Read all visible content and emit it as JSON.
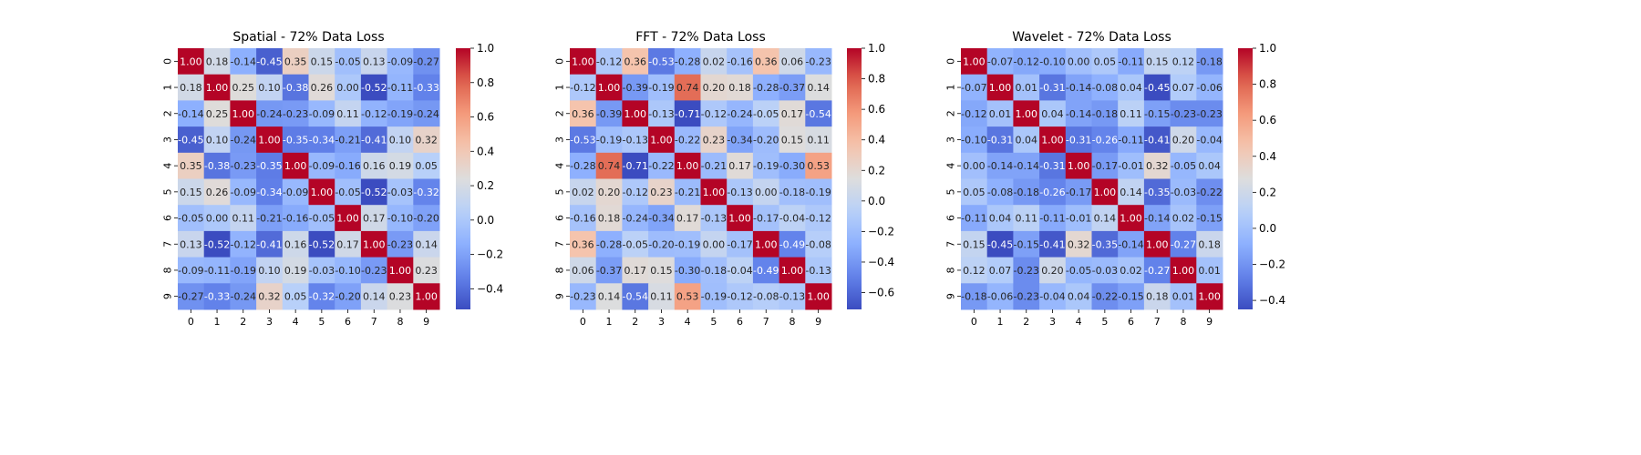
{
  "chart_data": [
    {
      "type": "heatmap",
      "title": "Spatial - 72% Data Loss",
      "x_tick_labels": [
        "0",
        "1",
        "2",
        "3",
        "4",
        "5",
        "6",
        "7",
        "8",
        "9"
      ],
      "y_tick_labels": [
        "0",
        "1",
        "2",
        "3",
        "4",
        "5",
        "6",
        "7",
        "8",
        "9"
      ],
      "colormap": "coolwarm",
      "value_range": [
        -0.52,
        1.0
      ],
      "colorbar_ticks": [
        "−0.4",
        "−0.2",
        "0.0",
        "0.2",
        "0.4",
        "0.6",
        "0.8",
        "1.0"
      ],
      "colorbar_tick_values": [
        -0.4,
        -0.2,
        0.0,
        0.2,
        0.4,
        0.6,
        0.8,
        1.0
      ],
      "matrix": [
        [
          1.0,
          0.18,
          -0.14,
          -0.45,
          0.35,
          0.15,
          -0.05,
          0.13,
          -0.09,
          -0.27
        ],
        [
          0.18,
          1.0,
          0.25,
          0.1,
          -0.38,
          0.26,
          0.0,
          -0.52,
          -0.11,
          -0.33
        ],
        [
          -0.14,
          0.25,
          1.0,
          -0.24,
          -0.23,
          -0.09,
          0.11,
          -0.12,
          -0.19,
          -0.24
        ],
        [
          -0.45,
          0.1,
          -0.24,
          1.0,
          -0.35,
          -0.34,
          -0.21,
          -0.41,
          0.1,
          0.32
        ],
        [
          0.35,
          -0.38,
          -0.23,
          -0.35,
          1.0,
          -0.09,
          -0.16,
          0.16,
          0.19,
          0.05
        ],
        [
          0.15,
          0.26,
          -0.09,
          -0.34,
          -0.09,
          1.0,
          -0.05,
          -0.52,
          -0.03,
          -0.32
        ],
        [
          -0.05,
          0.0,
          0.11,
          -0.21,
          -0.16,
          -0.05,
          1.0,
          0.17,
          -0.1,
          -0.2
        ],
        [
          0.13,
          -0.52,
          -0.12,
          -0.41,
          0.16,
          -0.52,
          0.17,
          1.0,
          -0.23,
          0.14
        ],
        [
          -0.09,
          -0.11,
          -0.19,
          0.1,
          0.19,
          -0.03,
          -0.1,
          -0.23,
          1.0,
          0.23
        ],
        [
          -0.27,
          -0.33,
          -0.24,
          0.32,
          0.05,
          -0.32,
          -0.2,
          0.14,
          0.23,
          1.0
        ]
      ]
    },
    {
      "type": "heatmap",
      "title": "FFT - 72% Data Loss",
      "x_tick_labels": [
        "0",
        "1",
        "2",
        "3",
        "4",
        "5",
        "6",
        "7",
        "8",
        "9"
      ],
      "y_tick_labels": [
        "0",
        "1",
        "2",
        "3",
        "4",
        "5",
        "6",
        "7",
        "8",
        "9"
      ],
      "colormap": "coolwarm",
      "value_range": [
        -0.71,
        1.0
      ],
      "colorbar_ticks": [
        "−0.6",
        "−0.4",
        "−0.2",
        "0.0",
        "0.2",
        "0.4",
        "0.6",
        "0.8",
        "1.0"
      ],
      "colorbar_tick_values": [
        -0.6,
        -0.4,
        -0.2,
        0.0,
        0.2,
        0.4,
        0.6,
        0.8,
        1.0
      ],
      "matrix": [
        [
          1.0,
          -0.12,
          0.36,
          -0.53,
          -0.28,
          0.02,
          -0.16,
          0.36,
          0.06,
          -0.23
        ],
        [
          -0.12,
          1.0,
          -0.39,
          -0.19,
          0.74,
          0.2,
          0.18,
          -0.28,
          -0.37,
          0.14
        ],
        [
          0.36,
          -0.39,
          1.0,
          -0.13,
          -0.71,
          -0.12,
          -0.24,
          -0.05,
          0.17,
          -0.54
        ],
        [
          -0.53,
          -0.19,
          -0.13,
          1.0,
          -0.22,
          0.23,
          -0.34,
          -0.2,
          0.15,
          0.11
        ],
        [
          -0.28,
          0.74,
          -0.71,
          -0.22,
          1.0,
          -0.21,
          0.17,
          -0.19,
          -0.3,
          0.53
        ],
        [
          0.02,
          0.2,
          -0.12,
          0.23,
          -0.21,
          1.0,
          -0.13,
          0.0,
          -0.18,
          -0.19
        ],
        [
          -0.16,
          0.18,
          -0.24,
          -0.34,
          0.17,
          -0.13,
          1.0,
          -0.17,
          -0.04,
          -0.12
        ],
        [
          0.36,
          -0.28,
          -0.05,
          -0.2,
          -0.19,
          0.0,
          -0.17,
          1.0,
          -0.49,
          -0.08
        ],
        [
          0.06,
          -0.37,
          0.17,
          0.15,
          -0.3,
          -0.18,
          -0.04,
          -0.49,
          1.0,
          -0.13
        ],
        [
          -0.23,
          0.14,
          -0.54,
          0.11,
          0.53,
          -0.19,
          -0.12,
          -0.08,
          -0.13,
          1.0
        ]
      ]
    },
    {
      "type": "heatmap",
      "title": "Wavelet - 72% Data Loss",
      "x_tick_labels": [
        "0",
        "1",
        "2",
        "3",
        "4",
        "5",
        "6",
        "7",
        "8",
        "9"
      ],
      "y_tick_labels": [
        "0",
        "1",
        "2",
        "3",
        "4",
        "5",
        "6",
        "7",
        "8",
        "9"
      ],
      "colormap": "coolwarm",
      "value_range": [
        -0.45,
        1.0
      ],
      "colorbar_ticks": [
        "−0.4",
        "−0.2",
        "0.0",
        "0.2",
        "0.4",
        "0.6",
        "0.8",
        "1.0"
      ],
      "colorbar_tick_values": [
        -0.4,
        -0.2,
        0.0,
        0.2,
        0.4,
        0.6,
        0.8,
        1.0
      ],
      "matrix": [
        [
          1.0,
          -0.07,
          -0.12,
          -0.1,
          0.0,
          0.05,
          -0.11,
          0.15,
          0.12,
          -0.18
        ],
        [
          -0.07,
          1.0,
          0.01,
          -0.31,
          -0.14,
          -0.08,
          0.04,
          -0.45,
          0.07,
          -0.06
        ],
        [
          -0.12,
          0.01,
          1.0,
          0.04,
          -0.14,
          -0.18,
          0.11,
          -0.15,
          -0.23,
          -0.23
        ],
        [
          -0.1,
          -0.31,
          0.04,
          1.0,
          -0.31,
          -0.26,
          -0.11,
          -0.41,
          0.2,
          -0.04
        ],
        [
          0.0,
          -0.14,
          -0.14,
          -0.31,
          1.0,
          -0.17,
          -0.01,
          0.32,
          -0.05,
          0.04
        ],
        [
          0.05,
          -0.08,
          -0.18,
          -0.26,
          -0.17,
          1.0,
          0.14,
          -0.35,
          -0.03,
          -0.22
        ],
        [
          -0.11,
          0.04,
          0.11,
          -0.11,
          -0.01,
          0.14,
          1.0,
          -0.14,
          0.02,
          -0.15
        ],
        [
          0.15,
          -0.45,
          -0.15,
          -0.41,
          0.32,
          -0.35,
          -0.14,
          1.0,
          -0.27,
          0.18
        ],
        [
          0.12,
          0.07,
          -0.23,
          0.2,
          -0.05,
          -0.03,
          0.02,
          -0.27,
          1.0,
          0.01
        ],
        [
          -0.18,
          -0.06,
          -0.23,
          -0.04,
          0.04,
          -0.22,
          -0.15,
          0.18,
          0.01,
          1.0
        ]
      ]
    }
  ]
}
